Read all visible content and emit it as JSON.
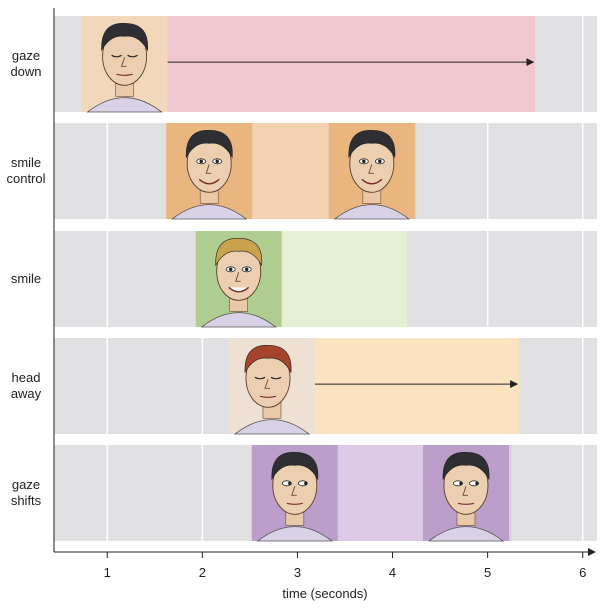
{
  "rows": [
    {
      "label_lines": [
        "gaze",
        "down"
      ],
      "start": 0.73,
      "end": 5.5,
      "color": "#f1c7cf",
      "faces": [
        0.73
      ],
      "arrow_to": 5.48
    },
    {
      "label_lines": [
        "smile",
        "control"
      ],
      "start": 1.62,
      "end": 4.25,
      "color": "#f5d1b4",
      "faces": [
        1.62,
        3.33
      ],
      "arrow_to": null
    },
    {
      "label_lines": [
        "smile"
      ],
      "start": 1.93,
      "end": 4.15,
      "color": "#e5efd4",
      "faces": [
        1.93
      ],
      "arrow_to": null
    },
    {
      "label_lines": [
        "head",
        "away"
      ],
      "start": 2.28,
      "end": 5.33,
      "color": "#fbe3c1",
      "faces": [
        2.28
      ],
      "arrow_to": 5.31
    },
    {
      "label_lines": [
        "gaze",
        "shifts"
      ],
      "start": 2.52,
      "end": 5.25,
      "color": "#ddcae6",
      "faces": [
        2.52,
        4.32
      ],
      "arrow_to": null
    }
  ],
  "axis": {
    "title": "time (seconds)",
    "min": 0.44,
    "max": 6.15,
    "ticks": [
      1,
      2,
      3,
      4,
      5,
      6
    ],
    "tick_labels": [
      "1",
      "2",
      "3",
      "4",
      "5",
      "6"
    ]
  },
  "colors": {
    "row_background": "#e1e1e3",
    "grid": "#ffffff",
    "axis": "#222222"
  },
  "face_icons": [
    "face-gaze-down-icon",
    "face-smile-control-icon",
    "face-smile-icon",
    "face-head-away-icon",
    "face-gaze-shifts-icon"
  ]
}
